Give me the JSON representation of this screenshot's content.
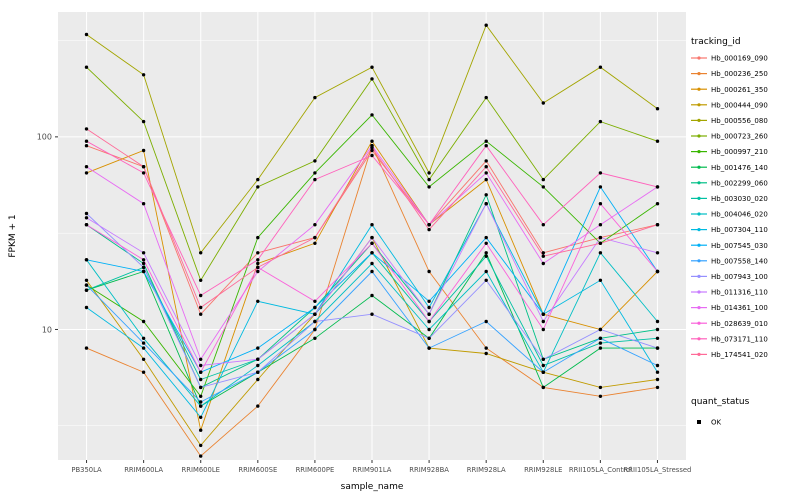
{
  "chart_data": {
    "type": "line",
    "title": "",
    "xlabel": "sample_name",
    "ylabel": "FPKM + 1",
    "y_scale": "log10",
    "y_ticks": [
      10,
      100
    ],
    "ylim": [
      2.1,
      445
    ],
    "grid": true,
    "legend_position": "right",
    "panel_bg": "#EBEBEB",
    "grid_color": "#FFFFFF",
    "point_color": "#000000",
    "categories": [
      "PB350LA",
      "RRIM600LA",
      "RRIM600LE",
      "RRIM600SE",
      "RRIM600PE",
      "RRIM901LA",
      "RRIM928BA",
      "RRIM928LA",
      "RRIM928LE",
      "RRII105LA_Control",
      "RRII105LA_Stressed"
    ],
    "series": [
      {
        "name": "Hb_000169_090",
        "color": "#F8766D",
        "values": [
          90,
          70,
          12,
          25,
          30,
          85,
          35,
          75,
          25,
          30,
          35
        ]
      },
      {
        "name": "Hb_000236_250",
        "color": "#EA8331",
        "values": [
          8,
          6,
          2.2,
          4,
          10,
          90,
          20,
          8,
          5,
          4.5,
          5
        ]
      },
      {
        "name": "Hb_000261_350",
        "color": "#D89000",
        "values": [
          65,
          85,
          3,
          22,
          28,
          95,
          35,
          60,
          12,
          10,
          20
        ]
      },
      {
        "name": "Hb_000444_090",
        "color": "#C09B00",
        "values": [
          18,
          7,
          2.5,
          5.5,
          12,
          30,
          8,
          7.5,
          6,
          5,
          5.5
        ]
      },
      {
        "name": "Hb_000556_080",
        "color": "#A3A500",
        "values": [
          340,
          210,
          25,
          60,
          160,
          230,
          65,
          380,
          150,
          230,
          140
        ]
      },
      {
        "name": "Hb_000723_260",
        "color": "#7CAE00",
        "values": [
          230,
          120,
          18,
          55,
          75,
          200,
          60,
          160,
          60,
          120,
          95
        ]
      },
      {
        "name": "Hb_000997_210",
        "color": "#39B600",
        "values": [
          17,
          11,
          4.5,
          30,
          65,
          130,
          55,
          95,
          55,
          28,
          45
        ]
      },
      {
        "name": "Hb_001476_140",
        "color": "#00BB4E",
        "values": [
          16,
          20,
          4,
          6,
          9,
          15,
          9,
          25,
          5,
          8,
          8
        ]
      },
      {
        "name": "Hb_002299_060",
        "color": "#00C087",
        "values": [
          35,
          22,
          5,
          7,
          13,
          28,
          12,
          50,
          7,
          9,
          10
        ]
      },
      {
        "name": "Hb_003030_020",
        "color": "#00C1A3",
        "values": [
          16,
          21,
          5.5,
          7,
          12,
          25,
          11,
          24,
          6.5,
          8.5,
          9
        ]
      },
      {
        "name": "Hb_004046_020",
        "color": "#00BFC4",
        "values": [
          23,
          9,
          4,
          6.5,
          11,
          22,
          10,
          20,
          6,
          25,
          11
        ]
      },
      {
        "name": "Hb_007304_110",
        "color": "#00BAE0",
        "values": [
          13,
          8,
          3.5,
          14,
          12,
          35,
          13,
          45,
          12,
          18,
          6
        ]
      },
      {
        "name": "Hb_007545_030",
        "color": "#00B0F6",
        "values": [
          23,
          20,
          6,
          8,
          13,
          25,
          14,
          30,
          12,
          55,
          20
        ]
      },
      {
        "name": "Hb_007558_140",
        "color": "#35A2FF",
        "values": [
          17,
          8.5,
          4.2,
          6,
          10,
          20,
          8,
          11,
          6,
          9,
          6.5
        ]
      },
      {
        "name": "Hb_007943_100",
        "color": "#9590FF",
        "values": [
          40,
          21,
          5,
          6,
          11,
          12,
          9,
          18,
          7,
          10,
          8
        ]
      },
      {
        "name": "Hb_011316_110",
        "color": "#C77CFF",
        "values": [
          38,
          25,
          6.5,
          7,
          12,
          30,
          12,
          45,
          11,
          30,
          25
        ]
      },
      {
        "name": "Hb_014361_100",
        "color": "#E76BF3",
        "values": [
          70,
          45,
          7,
          20,
          35,
          90,
          35,
          65,
          22,
          35,
          55
        ]
      },
      {
        "name": "Hb_028639_010",
        "color": "#FA62DB",
        "values": [
          35,
          23,
          6,
          21,
          14,
          28,
          11,
          28,
          10,
          45,
          20
        ]
      },
      {
        "name": "Hb_073171_110",
        "color": "#FF62BC",
        "values": [
          95,
          65,
          15,
          23,
          60,
          80,
          35,
          90,
          35,
          65,
          55
        ]
      },
      {
        "name": "Hb_174541_020",
        "color": "#FF6A98",
        "values": [
          110,
          70,
          13,
          21,
          30,
          88,
          33,
          70,
          24,
          28,
          35
        ]
      }
    ],
    "legend": {
      "color_title": "tracking_id",
      "shape_title": "quant_status",
      "shape_items": [
        {
          "label": "OK",
          "marker": "black-point"
        }
      ]
    }
  }
}
